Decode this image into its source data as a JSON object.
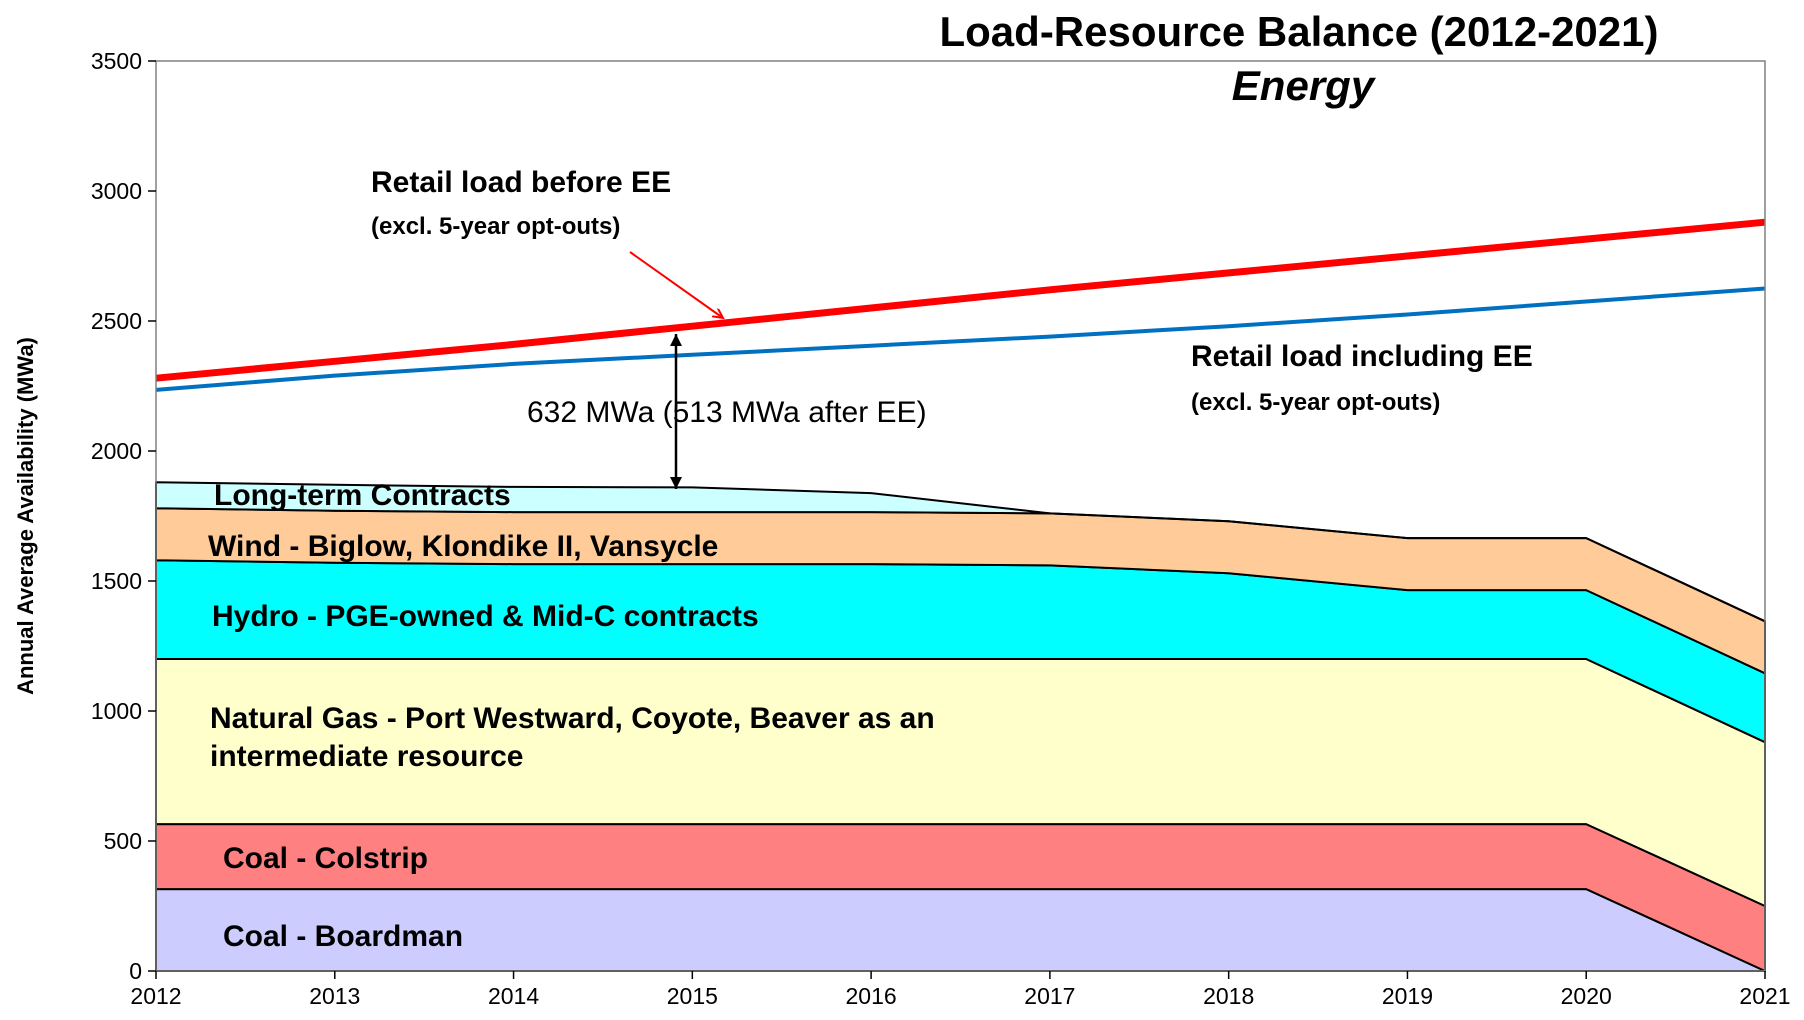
{
  "chart_data": {
    "type": "area",
    "title": "Load-Resource Balance (2012-2021)",
    "subtitle": "Energy",
    "ylabel": "Annual Average Availability (MWa)",
    "x": [
      2012,
      2013,
      2014,
      2015,
      2016,
      2017,
      2018,
      2019,
      2020,
      2021
    ],
    "xlim": [
      2012,
      2021
    ],
    "xticks": [
      2012,
      2013,
      2014,
      2015,
      2016,
      2017,
      2018,
      2019,
      2020,
      2021
    ],
    "ylim": [
      0,
      3500
    ],
    "yticks": [
      0,
      500,
      1000,
      1500,
      2000,
      2500,
      3000,
      3500
    ],
    "series": [
      {
        "name": "Coal - Boardman",
        "type": "stacked",
        "color": "#ccccff",
        "values": [
          315,
          315,
          315,
          315,
          315,
          315,
          315,
          315,
          315,
          0
        ]
      },
      {
        "name": "Coal - Colstrip",
        "type": "stacked",
        "color": "#ff8080",
        "values": [
          250,
          250,
          250,
          250,
          250,
          250,
          250,
          250,
          250,
          250
        ]
      },
      {
        "name": "Natural Gas - Port Westward, Coyote, Beaver as an intermediate resource",
        "type": "stacked",
        "color": "#ffffcc",
        "values": [
          635,
          635,
          635,
          635,
          635,
          635,
          635,
          635,
          635,
          630
        ]
      },
      {
        "name": "Hydro - PGE-owned & Mid-C contracts",
        "type": "stacked",
        "color": "#00ffff",
        "values": [
          380,
          370,
          365,
          365,
          365,
          360,
          330,
          265,
          265,
          265
        ]
      },
      {
        "name": "Wind - Biglow, Klondike II, Vansycle",
        "type": "stacked",
        "color": "#ffcc99",
        "values": [
          200,
          200,
          200,
          200,
          200,
          200,
          200,
          200,
          200,
          200
        ]
      },
      {
        "name": "Long-term Contracts",
        "type": "stacked",
        "color": "#ccffff",
        "values": [
          100,
          100,
          97,
          95,
          73,
          0,
          0,
          0,
          0,
          0
        ]
      },
      {
        "name": "Retail load before EE",
        "type": "line",
        "color": "#ff0000",
        "values": [
          2280,
          2345,
          2410,
          2480,
          2550,
          2620,
          2685,
          2750,
          2815,
          2880
        ]
      },
      {
        "name": "Retail load including EE",
        "type": "line",
        "color": "#0070c0",
        "values": [
          2235,
          2290,
          2335,
          2370,
          2405,
          2440,
          2480,
          2525,
          2575,
          2625
        ]
      }
    ],
    "annotations": [
      "(excl. 5-year opt-outs)",
      "(excl. 5-year opt-outs)",
      "632 MWa  (513 MWa after EE)"
    ]
  }
}
